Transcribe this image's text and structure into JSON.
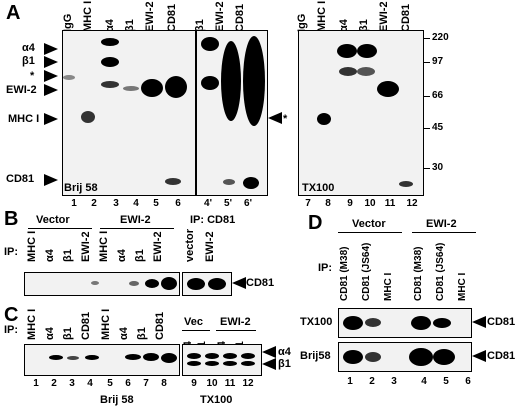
{
  "panelA": {
    "letter": "A",
    "left_lanes": [
      "IgG",
      "MHC I",
      "α4",
      "β1",
      "EWI-2",
      "CD81"
    ],
    "mid_lanes": [
      "β1",
      "EWI-2",
      "CD81"
    ],
    "right_lanes": [
      "IgG",
      "MHC I",
      "α4",
      "β1",
      "EWI-2",
      "CD81"
    ],
    "left_markers": [
      "α4",
      "β1",
      "*",
      "EWI-2",
      "MHC I",
      "CD81"
    ],
    "mid_marker": "*",
    "mw": [
      "220",
      "97",
      "66",
      "45",
      "30"
    ],
    "detergent_left": "Brij 58",
    "detergent_right": "TX100",
    "numbers_left": [
      "1",
      "2",
      "3",
      "4",
      "5",
      "6",
      "4'",
      "5'",
      "6'"
    ],
    "numbers_right": [
      "7",
      "8",
      "9",
      "10",
      "11",
      "12"
    ]
  },
  "panelB": {
    "letter": "B",
    "vector": "Vector",
    "ewi2": "EWI-2",
    "ipcd81": "IP: CD81",
    "ip": "IP:",
    "lanes": [
      "MHC I",
      "α4",
      "β1",
      "EWI-2",
      "MHC I",
      "α4",
      "β1",
      "EWI-2"
    ],
    "lanes_r": [
      "vector",
      "EWI-2"
    ],
    "marker": "CD81"
  },
  "panelC": {
    "letter": "C",
    "ip": "IP:",
    "lanes": [
      "MHC I",
      "α4",
      "β1",
      "CD81",
      "MHC I",
      "α4",
      "β1",
      "CD81"
    ],
    "vec": "Vec",
    "ewi2": "EWI-2",
    "lanes_r": [
      "α4",
      "β1",
      "α4",
      "β1"
    ],
    "marker1": "α4",
    "marker2": "β1",
    "numbers": [
      "1",
      "2",
      "3",
      "4",
      "5",
      "6",
      "7",
      "8",
      "9",
      "10",
      "11",
      "12"
    ],
    "brij": "Brij 58",
    "tx": "TX100"
  },
  "panelD": {
    "letter": "D",
    "vector": "Vector",
    "ewi2": "EWI-2",
    "ip": "IP:",
    "lanes": [
      "CD81 (M38)",
      "CD81 (JS64)",
      "MHC I",
      "CD81 (M38)",
      "CD81 (JS64)",
      "MHC I"
    ],
    "row1": "TX100",
    "row2": "Brij58",
    "marker": "CD81",
    "numbers": [
      "1",
      "2",
      "3",
      "4",
      "5",
      "6"
    ]
  }
}
